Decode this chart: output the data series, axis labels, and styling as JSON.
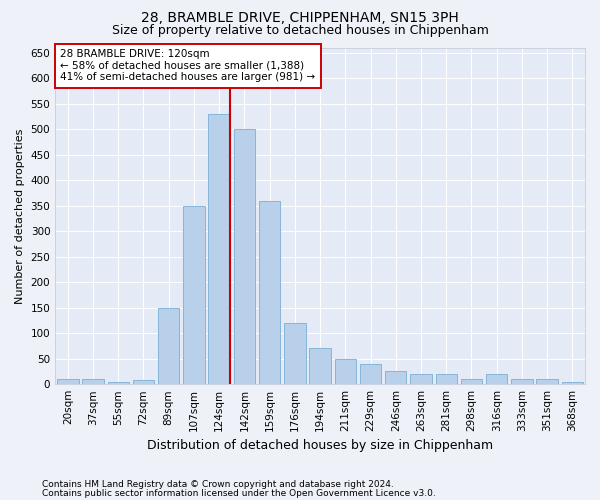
{
  "title": "28, BRAMBLE DRIVE, CHIPPENHAM, SN15 3PH",
  "subtitle": "Size of property relative to detached houses in Chippenham",
  "xlabel": "Distribution of detached houses by size in Chippenham",
  "ylabel": "Number of detached properties",
  "categories": [
    "20sqm",
    "37sqm",
    "55sqm",
    "72sqm",
    "89sqm",
    "107sqm",
    "124sqm",
    "142sqm",
    "159sqm",
    "176sqm",
    "194sqm",
    "211sqm",
    "229sqm",
    "246sqm",
    "263sqm",
    "281sqm",
    "298sqm",
    "316sqm",
    "333sqm",
    "351sqm",
    "368sqm"
  ],
  "values": [
    10,
    10,
    5,
    8,
    150,
    350,
    530,
    500,
    360,
    120,
    70,
    50,
    40,
    25,
    20,
    20,
    10,
    20,
    10,
    10,
    5
  ],
  "bar_color": "#b8d0ea",
  "bar_edge_color": "#7aafd4",
  "highlight_bar_index": 6,
  "highlight_line_color": "#cc0000",
  "ylim": [
    0,
    660
  ],
  "yticks": [
    0,
    50,
    100,
    150,
    200,
    250,
    300,
    350,
    400,
    450,
    500,
    550,
    600,
    650
  ],
  "annotation_text": "28 BRAMBLE DRIVE: 120sqm\n← 58% of detached houses are smaller (1,388)\n41% of semi-detached houses are larger (981) →",
  "annotation_box_facecolor": "#ffffff",
  "annotation_box_edgecolor": "#cc0000",
  "footnote1": "Contains HM Land Registry data © Crown copyright and database right 2024.",
  "footnote2": "Contains public sector information licensed under the Open Government Licence v3.0.",
  "fig_facecolor": "#eef2f8",
  "axes_facecolor": "#e4eaf6",
  "grid_color": "#ffffff",
  "title_fontsize": 10,
  "subtitle_fontsize": 9,
  "xlabel_fontsize": 9,
  "ylabel_fontsize": 8,
  "tick_fontsize": 7.5,
  "annotation_fontsize": 7.5,
  "footnote_fontsize": 6.5
}
